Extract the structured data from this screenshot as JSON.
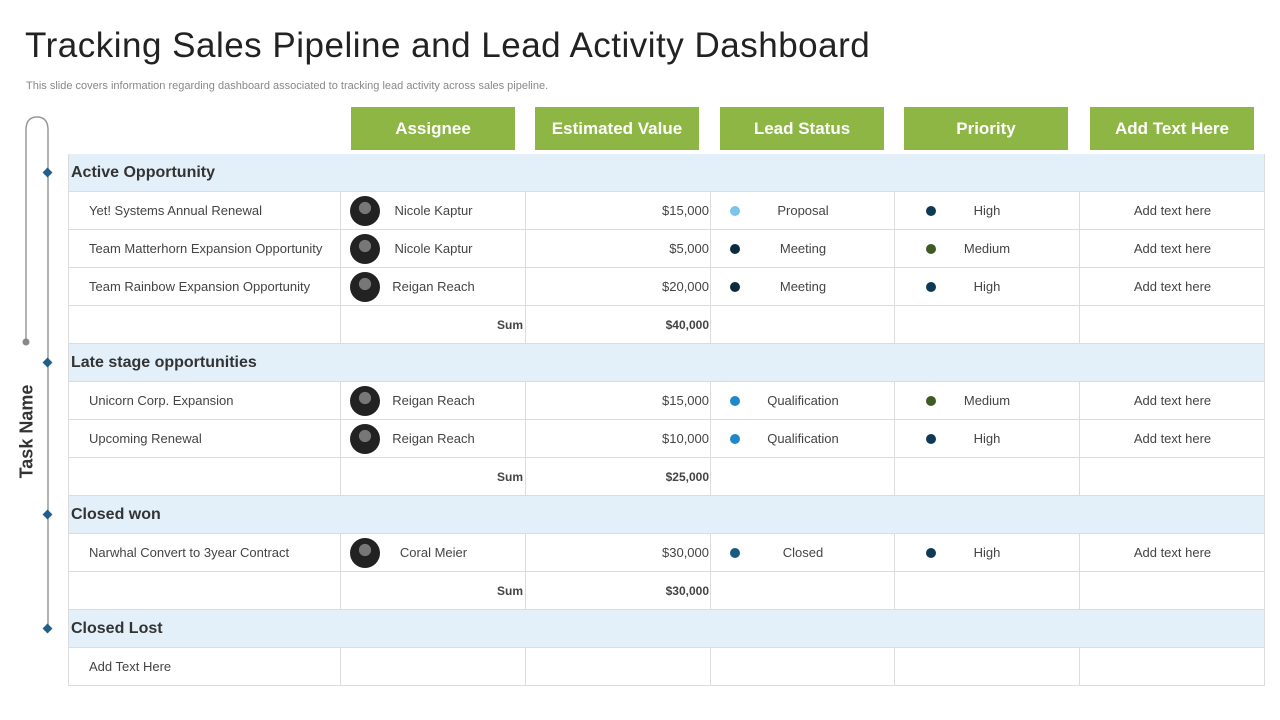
{
  "header": {
    "title": "Tracking Sales Pipeline and Lead Activity Dashboard",
    "subtitle": "This slide covers information regarding dashboard associated to tracking lead activity  across sales pipeline."
  },
  "side_label": "Task Name",
  "columns": [
    "Assignee",
    "Estimated Value",
    "Lead Status",
    "Priority",
    "Add Text Here"
  ],
  "groups": [
    {
      "name": "Active Opportunity",
      "rows": [
        {
          "task": "Yet! Systems Annual Renewal",
          "assignee": "Nicole Kaptur",
          "value": "$15,000",
          "status": "Proposal",
          "status_color": "#7cc4ea",
          "priority": "High",
          "priority_color": "#0e3a55",
          "note": "Add text here"
        },
        {
          "task": "Team Matterhorn Expansion Opportunity",
          "assignee": "Nicole Kaptur",
          "value": "$5,000",
          "status": "Meeting",
          "status_color": "#0d2a3f",
          "priority": "Medium",
          "priority_color": "#3e5b24",
          "note": "Add text here"
        },
        {
          "task": "Team Rainbow Expansion Opportunity",
          "assignee": "Reigan Reach",
          "value": "$20,000",
          "status": "Meeting",
          "status_color": "#0d2a3f",
          "priority": "High",
          "priority_color": "#0e3a55",
          "note": "Add text here"
        }
      ],
      "sum_label": "Sum",
      "sum": "$40,000"
    },
    {
      "name": "Late stage opportunities",
      "rows": [
        {
          "task": "Unicorn Corp. Expansion",
          "assignee": "Reigan Reach",
          "value": "$15,000",
          "status": "Qualification",
          "status_color": "#1e88c8",
          "priority": "Medium",
          "priority_color": "#3e5b24",
          "note": "Add text here"
        },
        {
          "task": "Upcoming Renewal",
          "assignee": "Reigan Reach",
          "value": "$10,000",
          "status": "Qualification",
          "status_color": "#1e88c8",
          "priority": "High",
          "priority_color": "#0e3a55",
          "note": "Add text here"
        }
      ],
      "sum_label": "Sum",
      "sum": "$25,000"
    },
    {
      "name": "Closed won",
      "rows": [
        {
          "task": "Narwhal Convert  to 3year Contract",
          "assignee": "Coral Meier",
          "value": "$30,000",
          "status": "Closed",
          "status_color": "#1a5a80",
          "priority": "High",
          "priority_color": "#0e3a55",
          "note": "Add text here"
        }
      ],
      "sum_label": "Sum",
      "sum": "$30,000"
    },
    {
      "name": "Closed Lost",
      "rows": [
        {
          "task": "Add Text Here"
        }
      ]
    }
  ]
}
